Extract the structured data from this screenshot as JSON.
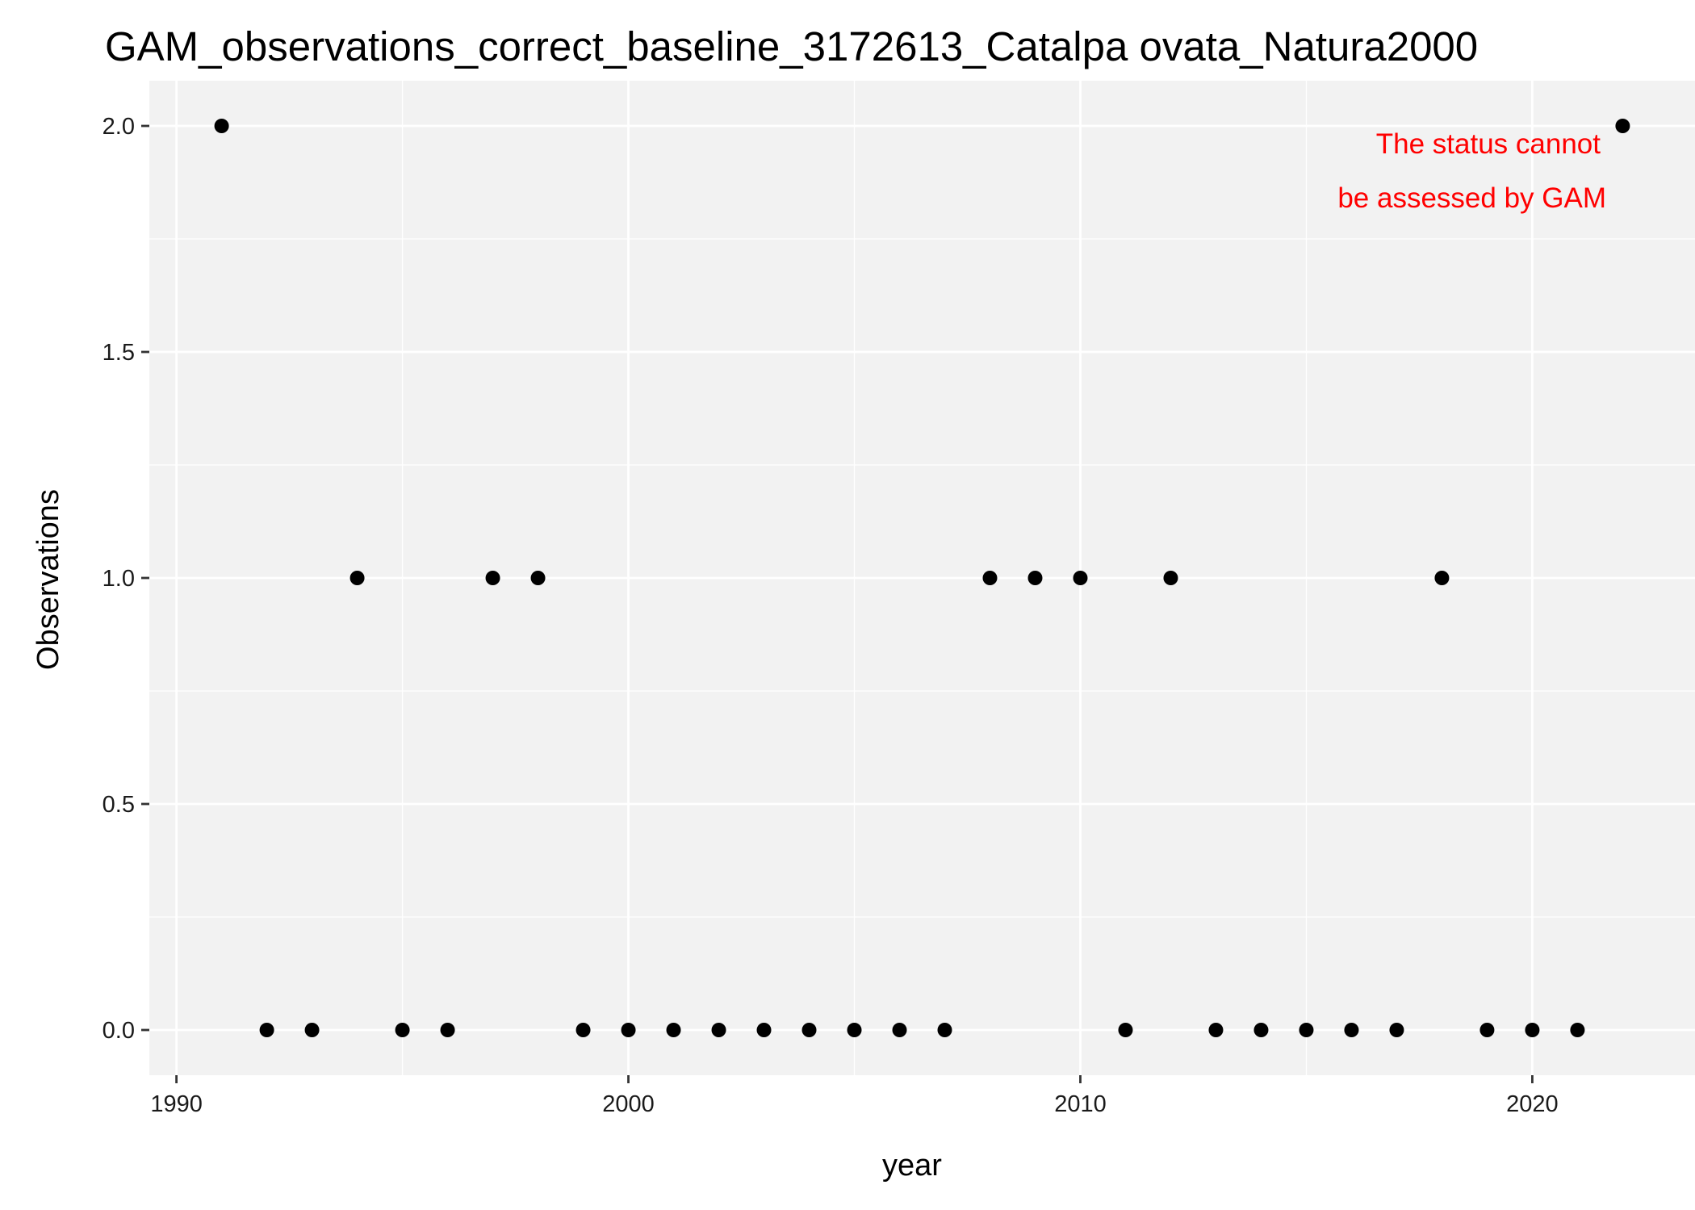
{
  "chart_data": {
    "type": "scatter",
    "title": "GAM_observations_correct_baseline_3172613_Catalpa ovata_Natura2000",
    "xlabel": "year",
    "ylabel": "Observations",
    "xlim": [
      1989.4,
      2023.6
    ],
    "ylim": [
      -0.1,
      2.1
    ],
    "x_ticks": [
      1990,
      2000,
      2010,
      2020
    ],
    "x_tick_labels": [
      "1990",
      "2000",
      "2010",
      "2020"
    ],
    "x_minor_ticks": [
      1995,
      2005,
      2015
    ],
    "y_ticks": [
      0.0,
      0.5,
      1.0,
      1.5,
      2.0
    ],
    "y_tick_labels": [
      "0.0",
      "0.5",
      "1.0",
      "1.5",
      "2.0"
    ],
    "y_minor_ticks": [
      0.25,
      0.75,
      1.25,
      1.75
    ],
    "grid": true,
    "panel_background": "#f2f2f2",
    "grid_color": "#ffffff",
    "point_color": "#000000",
    "points": [
      {
        "x": 1991,
        "y": 2
      },
      {
        "x": 1992,
        "y": 0
      },
      {
        "x": 1993,
        "y": 0
      },
      {
        "x": 1994,
        "y": 1
      },
      {
        "x": 1995,
        "y": 0
      },
      {
        "x": 1996,
        "y": 0
      },
      {
        "x": 1997,
        "y": 1
      },
      {
        "x": 1998,
        "y": 1
      },
      {
        "x": 1999,
        "y": 0
      },
      {
        "x": 2000,
        "y": 0
      },
      {
        "x": 2001,
        "y": 0
      },
      {
        "x": 2002,
        "y": 0
      },
      {
        "x": 2003,
        "y": 0
      },
      {
        "x": 2004,
        "y": 0
      },
      {
        "x": 2005,
        "y": 0
      },
      {
        "x": 2006,
        "y": 0
      },
      {
        "x": 2007,
        "y": 0
      },
      {
        "x": 2008,
        "y": 1
      },
      {
        "x": 2009,
        "y": 1
      },
      {
        "x": 2010,
        "y": 1
      },
      {
        "x": 2011,
        "y": 0
      },
      {
        "x": 2012,
        "y": 1
      },
      {
        "x": 2013,
        "y": 0
      },
      {
        "x": 2014,
        "y": 0
      },
      {
        "x": 2015,
        "y": 0
      },
      {
        "x": 2016,
        "y": 0
      },
      {
        "x": 2017,
        "y": 0
      },
      {
        "x": 2018,
        "y": 1
      },
      {
        "x": 2019,
        "y": 0
      },
      {
        "x": 2020,
        "y": 0
      },
      {
        "x": 2021,
        "y": 0
      },
      {
        "x": 2022,
        "y": 2
      }
    ],
    "annotation": {
      "lines": [
        "The status cannot",
        "be assessed by GAM"
      ],
      "color": "#ff0000"
    }
  }
}
